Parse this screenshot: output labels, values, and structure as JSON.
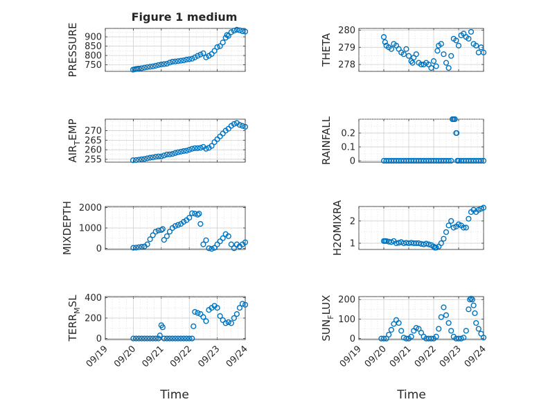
{
  "figure": {
    "title": "Figure 1 medium",
    "xlabel": "Time",
    "marker_color": "#0072BD",
    "x_tick_labels": [
      "09/19",
      "09/20",
      "09/21",
      "09/22",
      "09/23",
      "09/24"
    ]
  },
  "chart_data": [
    {
      "type": "scatter",
      "id": "pressure",
      "ylabel_parts": [
        [
          "PRESSURE",
          "normal"
        ]
      ],
      "xlim": [
        0,
        5
      ],
      "ylim": [
        715,
        945
      ],
      "yticks": [
        750,
        800,
        850,
        900
      ],
      "ytick_labels": [
        "750",
        "800",
        "850",
        "900"
      ],
      "grid": true,
      "x": [
        0.99,
        1.05,
        1.1,
        1.15,
        1.2,
        1.3,
        1.4,
        1.5,
        1.6,
        1.7,
        1.8,
        1.9,
        2.0,
        2.1,
        2.2,
        2.3,
        2.4,
        2.5,
        2.6,
        2.7,
        2.8,
        2.9,
        3.0,
        3.1,
        3.2,
        3.3,
        3.4,
        3.5,
        3.6,
        3.7,
        3.8,
        3.9,
        4.0,
        4.1,
        4.2,
        4.3,
        4.35,
        4.4,
        4.5,
        4.6,
        4.7,
        4.8,
        4.9,
        5.0
      ],
      "y": [
        724,
        726,
        728,
        729,
        730,
        732,
        735,
        738,
        740,
        742,
        745,
        749,
        752,
        754,
        756,
        762,
        767,
        768,
        770,
        772,
        774,
        778,
        780,
        783,
        790,
        798,
        805,
        812,
        790,
        798,
        808,
        825,
        845,
        850,
        870,
        895,
        910,
        905,
        925,
        933,
        938,
        935,
        930,
        928
      ]
    },
    {
      "type": "scatter",
      "id": "theta",
      "ylabel_parts": [
        [
          "THETA",
          "normal"
        ]
      ],
      "xlim": [
        0,
        5
      ],
      "ylim": [
        277.6,
        280.1
      ],
      "yticks": [
        278,
        279,
        280
      ],
      "ytick_labels": [
        "278",
        "279",
        "280"
      ],
      "grid": true,
      "x": [
        1.0,
        1.05,
        1.1,
        1.2,
        1.3,
        1.4,
        1.5,
        1.6,
        1.7,
        1.8,
        1.9,
        2.0,
        2.1,
        2.15,
        2.2,
        2.3,
        2.4,
        2.5,
        2.6,
        2.7,
        2.8,
        2.9,
        3.0,
        3.1,
        3.15,
        3.2,
        3.3,
        3.4,
        3.5,
        3.6,
        3.7,
        3.8,
        3.9,
        4.0,
        4.1,
        4.2,
        4.3,
        4.4,
        4.5,
        4.6,
        4.7,
        4.8,
        4.9,
        5.0
      ],
      "y": [
        279.6,
        279.3,
        279.1,
        279.0,
        278.9,
        279.2,
        279.1,
        278.9,
        278.7,
        278.6,
        278.9,
        278.5,
        278.2,
        278.1,
        278.4,
        278.6,
        278.1,
        278.0,
        278.0,
        278.1,
        278.0,
        277.8,
        278.2,
        277.9,
        278.8,
        279.1,
        279.2,
        278.6,
        278.1,
        277.8,
        278.5,
        279.5,
        279.4,
        279.1,
        279.7,
        279.8,
        279.6,
        279.5,
        279.9,
        279.2,
        279.1,
        278.7,
        279.0,
        278.7
      ]
    },
    {
      "type": "scatter",
      "id": "air-temp",
      "ylabel_parts": [
        [
          "AIR",
          "normal"
        ],
        [
          "T",
          "sub"
        ],
        [
          "EMP",
          "normal"
        ]
      ],
      "xlim": [
        0,
        5
      ],
      "ylim": [
        253.5,
        276
      ],
      "yticks": [
        255,
        260,
        265,
        270
      ],
      "ytick_labels": [
        "255",
        "260",
        "265",
        "270"
      ],
      "grid": true,
      "x": [
        0.99,
        1.1,
        1.2,
        1.3,
        1.4,
        1.5,
        1.6,
        1.7,
        1.8,
        1.9,
        2.0,
        2.1,
        2.2,
        2.3,
        2.4,
        2.5,
        2.6,
        2.7,
        2.8,
        2.9,
        3.0,
        3.1,
        3.2,
        3.3,
        3.4,
        3.5,
        3.6,
        3.7,
        3.8,
        3.9,
        4.0,
        4.1,
        4.2,
        4.3,
        4.4,
        4.5,
        4.6,
        4.7,
        4.8,
        4.9,
        5.0
      ],
      "y": [
        254.5,
        254.6,
        254.8,
        255.0,
        255.2,
        255.5,
        255.8,
        256.0,
        256.3,
        256.5,
        256.5,
        257.0,
        257.5,
        257.6,
        257.8,
        258.3,
        258.7,
        259.0,
        259.3,
        259.5,
        260.0,
        260.5,
        260.8,
        260.8,
        261.0,
        261.5,
        260.5,
        261.0,
        262.0,
        264.0,
        265.5,
        267.0,
        268.5,
        270.0,
        271.0,
        272.5,
        273.5,
        274.0,
        273.0,
        272.5,
        272.0
      ]
    },
    {
      "type": "scatter",
      "id": "rainfall",
      "ylabel_parts": [
        [
          "RAINFALL",
          "normal"
        ]
      ],
      "xlim": [
        0,
        5
      ],
      "ylim": [
        -0.01,
        0.3
      ],
      "yticks": [
        0,
        0.1,
        0.2
      ],
      "ytick_labels": [
        "0",
        "0.1",
        "0.2"
      ],
      "grid": true,
      "x": [
        1.0,
        1.1,
        1.2,
        1.3,
        1.4,
        1.5,
        1.6,
        1.7,
        1.8,
        1.9,
        2.0,
        2.1,
        2.2,
        2.3,
        2.4,
        2.5,
        2.6,
        2.7,
        2.8,
        2.9,
        3.0,
        3.1,
        3.2,
        3.3,
        3.4,
        3.5,
        3.6,
        3.7,
        3.75,
        3.8,
        3.85,
        3.9,
        3.92,
        3.95,
        4.0,
        4.1,
        4.2,
        4.3,
        4.4,
        4.5,
        4.6,
        4.7,
        4.8,
        4.9,
        5.0
      ],
      "y": [
        0,
        0,
        0,
        0,
        0,
        0,
        0,
        0,
        0,
        0,
        0,
        0,
        0,
        0,
        0,
        0,
        0,
        0,
        0,
        0,
        0,
        0,
        0,
        0,
        0,
        0,
        0,
        0,
        0.3,
        0.3,
        0.3,
        0.2,
        0.2,
        0,
        0,
        0,
        0,
        0,
        0,
        0,
        0,
        0,
        0,
        0,
        0
      ]
    },
    {
      "type": "scatter",
      "id": "mixdepth",
      "ylabel_parts": [
        [
          "MIXDEPTH",
          "normal"
        ]
      ],
      "xlim": [
        0,
        5
      ],
      "ylim": [
        -50,
        2050
      ],
      "yticks": [
        0,
        1000,
        2000
      ],
      "ytick_labels": [
        "0",
        "1000",
        "2000"
      ],
      "grid": true,
      "x": [
        1.0,
        1.1,
        1.2,
        1.3,
        1.4,
        1.5,
        1.6,
        1.7,
        1.8,
        1.9,
        2.0,
        2.05,
        2.1,
        2.2,
        2.3,
        2.4,
        2.5,
        2.6,
        2.7,
        2.8,
        2.9,
        3.0,
        3.1,
        3.2,
        3.3,
        3.35,
        3.4,
        3.5,
        3.6,
        3.7,
        3.8,
        3.9,
        4.0,
        4.1,
        4.2,
        4.3,
        4.4,
        4.5,
        4.6,
        4.7,
        4.8,
        4.9,
        5.0
      ],
      "y": [
        30,
        40,
        60,
        80,
        100,
        200,
        450,
        650,
        820,
        880,
        900,
        950,
        420,
        600,
        820,
        1000,
        1100,
        1150,
        1200,
        1300,
        1380,
        1500,
        1720,
        1700,
        1650,
        1700,
        1200,
        200,
        400,
        10,
        -20,
        30,
        200,
        350,
        500,
        700,
        600,
        200,
        10,
        200,
        100,
        200,
        300
      ]
    },
    {
      "type": "scatter",
      "id": "h2omixra",
      "ylabel_parts": [
        [
          "H2OMIXRA",
          "normal"
        ]
      ],
      "xlim": [
        0,
        5
      ],
      "ylim": [
        0.72,
        2.65
      ],
      "yticks": [
        1,
        2
      ],
      "ytick_labels": [
        "1",
        "2"
      ],
      "grid": true,
      "x": [
        1.0,
        1.05,
        1.1,
        1.2,
        1.3,
        1.4,
        1.5,
        1.6,
        1.7,
        1.8,
        1.9,
        2.0,
        2.1,
        2.2,
        2.3,
        2.4,
        2.5,
        2.6,
        2.7,
        2.8,
        2.9,
        3.0,
        3.05,
        3.1,
        3.2,
        3.3,
        3.4,
        3.5,
        3.6,
        3.7,
        3.8,
        3.9,
        4.0,
        4.1,
        4.2,
        4.3,
        4.4,
        4.5,
        4.6,
        4.7,
        4.8,
        4.9,
        5.0
      ],
      "y": [
        1.1,
        1.1,
        1.1,
        1.07,
        1.05,
        1.1,
        1.0,
        1.02,
        1.05,
        1.0,
        1.02,
        1.0,
        1.02,
        1.0,
        1.0,
        1.0,
        0.97,
        0.95,
        0.98,
        0.95,
        0.92,
        0.85,
        0.8,
        0.8,
        0.85,
        1.0,
        1.2,
        1.5,
        1.8,
        2.0,
        1.7,
        1.75,
        1.85,
        1.8,
        1.7,
        1.7,
        2.1,
        2.4,
        2.5,
        2.4,
        2.5,
        2.55,
        2.6
      ]
    },
    {
      "type": "scatter",
      "id": "terr-msl",
      "ylabel_parts": [
        [
          "TERR",
          "normal"
        ],
        [
          "M",
          "sub"
        ],
        [
          "SL",
          "normal"
        ]
      ],
      "xlim": [
        0,
        5
      ],
      "ylim": [
        -10,
        410
      ],
      "yticks": [
        0,
        200,
        400
      ],
      "ytick_labels": [
        "0",
        "200",
        "400"
      ],
      "grid": true,
      "x": [
        1.0,
        1.1,
        1.2,
        1.3,
        1.4,
        1.5,
        1.6,
        1.7,
        1.8,
        1.9,
        1.95,
        2.0,
        2.05,
        2.1,
        2.2,
        2.3,
        2.4,
        2.5,
        2.6,
        2.7,
        2.8,
        2.9,
        3.0,
        3.1,
        3.15,
        3.2,
        3.3,
        3.4,
        3.5,
        3.6,
        3.7,
        3.8,
        3.9,
        4.0,
        4.1,
        4.2,
        4.3,
        4.4,
        4.5,
        4.6,
        4.7,
        4.8,
        4.9,
        5.0
      ],
      "y": [
        0,
        0,
        0,
        0,
        0,
        0,
        0,
        0,
        0,
        0,
        30,
        130,
        110,
        0,
        0,
        0,
        0,
        0,
        0,
        0,
        0,
        0,
        0,
        0,
        120,
        260,
        250,
        240,
        210,
        170,
        280,
        300,
        320,
        300,
        220,
        180,
        150,
        160,
        150,
        200,
        240,
        300,
        340,
        330
      ]
    },
    {
      "type": "scatter",
      "id": "sun-flux",
      "ylabel_parts": [
        [
          "SUN",
          "normal"
        ],
        [
          "F",
          "sub"
        ],
        [
          "LUX",
          "normal"
        ]
      ],
      "xlim": [
        0,
        5
      ],
      "ylim": [
        -5,
        215
      ],
      "yticks": [
        0,
        100,
        200
      ],
      "ytick_labels": [
        "0",
        "100",
        "200"
      ],
      "grid": true,
      "x": [
        0.9,
        1.0,
        1.1,
        1.2,
        1.3,
        1.4,
        1.5,
        1.6,
        1.7,
        1.8,
        1.9,
        2.0,
        2.1,
        2.2,
        2.3,
        2.4,
        2.5,
        2.6,
        2.7,
        2.8,
        2.9,
        3.0,
        3.1,
        3.2,
        3.3,
        3.4,
        3.5,
        3.6,
        3.7,
        3.8,
        3.9,
        4.0,
        4.1,
        4.2,
        4.3,
        4.4,
        4.45,
        4.5,
        4.55,
        4.6,
        4.65,
        4.7,
        4.8,
        4.9,
        5.0
      ],
      "y": [
        0,
        0,
        0,
        20,
        45,
        75,
        95,
        80,
        40,
        5,
        0,
        0,
        10,
        40,
        55,
        50,
        30,
        10,
        0,
        0,
        0,
        0,
        10,
        50,
        110,
        160,
        120,
        80,
        40,
        10,
        0,
        0,
        0,
        5,
        40,
        150,
        200,
        205,
        200,
        170,
        130,
        80,
        50,
        25,
        5
      ]
    }
  ]
}
